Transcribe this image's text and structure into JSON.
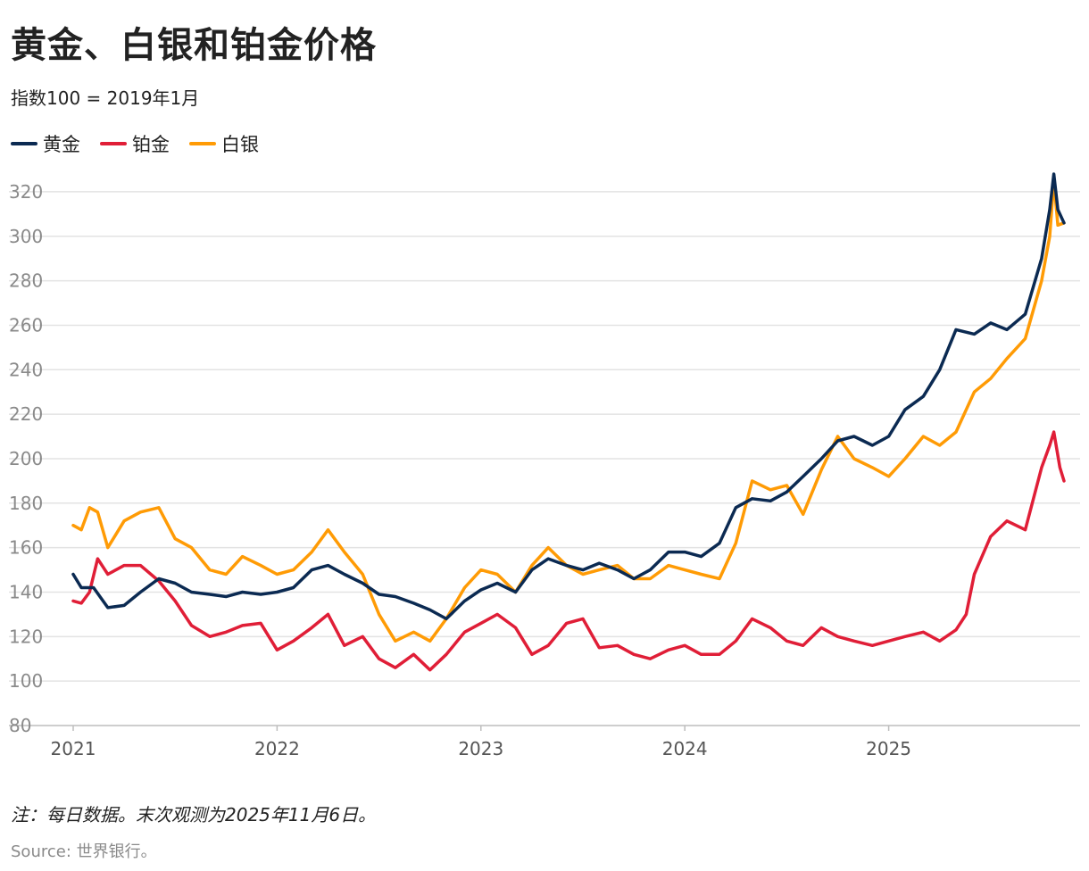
{
  "title": "黄金、白银和铂金价格",
  "subtitle": "指数100 = 2019年1月",
  "note": "注：每日数据。末次观测为2025年11月6日。",
  "source": "Source: 世界银行。",
  "chart_data": {
    "type": "line",
    "title": "黄金、白银和铂金价格",
    "ylabel": "指数100 = 2019年1月",
    "xlabel": "",
    "ylim": [
      80,
      330
    ],
    "xlim": [
      2021.0,
      2025.86
    ],
    "yticks": [
      80,
      100,
      120,
      140,
      160,
      180,
      200,
      220,
      240,
      260,
      280,
      300,
      320
    ],
    "xticks": [
      2021,
      2022,
      2023,
      2024,
      2025
    ],
    "grid": true,
    "legend_position": "top-left",
    "series": [
      {
        "name": "黄金",
        "color": "#0b2a52",
        "points": [
          [
            2021.0,
            148
          ],
          [
            2021.04,
            142
          ],
          [
            2021.1,
            142
          ],
          [
            2021.17,
            133
          ],
          [
            2021.25,
            134
          ],
          [
            2021.33,
            140
          ],
          [
            2021.42,
            146
          ],
          [
            2021.5,
            144
          ],
          [
            2021.58,
            140
          ],
          [
            2021.67,
            139
          ],
          [
            2021.75,
            138
          ],
          [
            2021.83,
            140
          ],
          [
            2021.92,
            139
          ],
          [
            2022.0,
            140
          ],
          [
            2022.08,
            142
          ],
          [
            2022.17,
            150
          ],
          [
            2022.25,
            152
          ],
          [
            2022.33,
            148
          ],
          [
            2022.42,
            144
          ],
          [
            2022.5,
            139
          ],
          [
            2022.58,
            138
          ],
          [
            2022.67,
            135
          ],
          [
            2022.75,
            132
          ],
          [
            2022.83,
            128
          ],
          [
            2022.92,
            136
          ],
          [
            2023.0,
            141
          ],
          [
            2023.08,
            144
          ],
          [
            2023.17,
            140
          ],
          [
            2023.25,
            150
          ],
          [
            2023.33,
            155
          ],
          [
            2023.42,
            152
          ],
          [
            2023.5,
            150
          ],
          [
            2023.58,
            153
          ],
          [
            2023.67,
            150
          ],
          [
            2023.75,
            146
          ],
          [
            2023.83,
            150
          ],
          [
            2023.92,
            158
          ],
          [
            2024.0,
            158
          ],
          [
            2024.08,
            156
          ],
          [
            2024.17,
            162
          ],
          [
            2024.25,
            178
          ],
          [
            2024.33,
            182
          ],
          [
            2024.42,
            181
          ],
          [
            2024.5,
            185
          ],
          [
            2024.58,
            192
          ],
          [
            2024.67,
            200
          ],
          [
            2024.75,
            208
          ],
          [
            2024.83,
            210
          ],
          [
            2024.92,
            206
          ],
          [
            2025.0,
            210
          ],
          [
            2025.08,
            222
          ],
          [
            2025.17,
            228
          ],
          [
            2025.25,
            240
          ],
          [
            2025.33,
            258
          ],
          [
            2025.42,
            256
          ],
          [
            2025.5,
            261
          ],
          [
            2025.58,
            258
          ],
          [
            2025.67,
            265
          ],
          [
            2025.75,
            290
          ],
          [
            2025.79,
            312
          ],
          [
            2025.81,
            328
          ],
          [
            2025.83,
            312
          ],
          [
            2025.86,
            306
          ]
        ]
      },
      {
        "name": "铂金",
        "color": "#e01e37",
        "points": [
          [
            2021.0,
            136
          ],
          [
            2021.04,
            135
          ],
          [
            2021.08,
            140
          ],
          [
            2021.12,
            155
          ],
          [
            2021.17,
            148
          ],
          [
            2021.25,
            152
          ],
          [
            2021.33,
            152
          ],
          [
            2021.42,
            145
          ],
          [
            2021.5,
            136
          ],
          [
            2021.58,
            125
          ],
          [
            2021.67,
            120
          ],
          [
            2021.75,
            122
          ],
          [
            2021.83,
            125
          ],
          [
            2021.92,
            126
          ],
          [
            2022.0,
            114
          ],
          [
            2022.08,
            118
          ],
          [
            2022.17,
            124
          ],
          [
            2022.25,
            130
          ],
          [
            2022.33,
            116
          ],
          [
            2022.42,
            120
          ],
          [
            2022.5,
            110
          ],
          [
            2022.58,
            106
          ],
          [
            2022.67,
            112
          ],
          [
            2022.75,
            105
          ],
          [
            2022.83,
            112
          ],
          [
            2022.92,
            122
          ],
          [
            2023.0,
            126
          ],
          [
            2023.08,
            130
          ],
          [
            2023.17,
            124
          ],
          [
            2023.25,
            112
          ],
          [
            2023.33,
            116
          ],
          [
            2023.42,
            126
          ],
          [
            2023.5,
            128
          ],
          [
            2023.58,
            115
          ],
          [
            2023.67,
            116
          ],
          [
            2023.75,
            112
          ],
          [
            2023.83,
            110
          ],
          [
            2023.92,
            114
          ],
          [
            2024.0,
            116
          ],
          [
            2024.08,
            112
          ],
          [
            2024.17,
            112
          ],
          [
            2024.25,
            118
          ],
          [
            2024.33,
            128
          ],
          [
            2024.42,
            124
          ],
          [
            2024.5,
            118
          ],
          [
            2024.58,
            116
          ],
          [
            2024.67,
            124
          ],
          [
            2024.75,
            120
          ],
          [
            2024.83,
            118
          ],
          [
            2024.92,
            116
          ],
          [
            2025.0,
            118
          ],
          [
            2025.08,
            120
          ],
          [
            2025.17,
            122
          ],
          [
            2025.25,
            118
          ],
          [
            2025.33,
            123
          ],
          [
            2025.38,
            130
          ],
          [
            2025.42,
            148
          ],
          [
            2025.5,
            165
          ],
          [
            2025.58,
            172
          ],
          [
            2025.67,
            168
          ],
          [
            2025.75,
            196
          ],
          [
            2025.79,
            206
          ],
          [
            2025.81,
            212
          ],
          [
            2025.84,
            196
          ],
          [
            2025.86,
            190
          ]
        ]
      },
      {
        "name": "白银",
        "color": "#ff9b05",
        "points": [
          [
            2021.0,
            170
          ],
          [
            2021.04,
            168
          ],
          [
            2021.08,
            178
          ],
          [
            2021.12,
            176
          ],
          [
            2021.17,
            160
          ],
          [
            2021.25,
            172
          ],
          [
            2021.33,
            176
          ],
          [
            2021.42,
            178
          ],
          [
            2021.5,
            164
          ],
          [
            2021.58,
            160
          ],
          [
            2021.67,
            150
          ],
          [
            2021.75,
            148
          ],
          [
            2021.83,
            156
          ],
          [
            2021.92,
            152
          ],
          [
            2022.0,
            148
          ],
          [
            2022.08,
            150
          ],
          [
            2022.17,
            158
          ],
          [
            2022.25,
            168
          ],
          [
            2022.33,
            158
          ],
          [
            2022.42,
            148
          ],
          [
            2022.5,
            130
          ],
          [
            2022.58,
            118
          ],
          [
            2022.67,
            122
          ],
          [
            2022.75,
            118
          ],
          [
            2022.83,
            128
          ],
          [
            2022.92,
            142
          ],
          [
            2023.0,
            150
          ],
          [
            2023.08,
            148
          ],
          [
            2023.17,
            140
          ],
          [
            2023.25,
            152
          ],
          [
            2023.33,
            160
          ],
          [
            2023.42,
            152
          ],
          [
            2023.5,
            148
          ],
          [
            2023.58,
            150
          ],
          [
            2023.67,
            152
          ],
          [
            2023.75,
            146
          ],
          [
            2023.83,
            146
          ],
          [
            2023.92,
            152
          ],
          [
            2024.0,
            150
          ],
          [
            2024.08,
            148
          ],
          [
            2024.17,
            146
          ],
          [
            2024.25,
            162
          ],
          [
            2024.33,
            190
          ],
          [
            2024.42,
            186
          ],
          [
            2024.5,
            188
          ],
          [
            2024.58,
            175
          ],
          [
            2024.67,
            195
          ],
          [
            2024.75,
            210
          ],
          [
            2024.83,
            200
          ],
          [
            2024.92,
            196
          ],
          [
            2025.0,
            192
          ],
          [
            2025.08,
            200
          ],
          [
            2025.17,
            210
          ],
          [
            2025.25,
            206
          ],
          [
            2025.33,
            212
          ],
          [
            2025.42,
            230
          ],
          [
            2025.5,
            236
          ],
          [
            2025.58,
            245
          ],
          [
            2025.67,
            254
          ],
          [
            2025.75,
            280
          ],
          [
            2025.79,
            300
          ],
          [
            2025.81,
            325
          ],
          [
            2025.83,
            305
          ],
          [
            2025.86,
            306
          ]
        ]
      }
    ]
  }
}
